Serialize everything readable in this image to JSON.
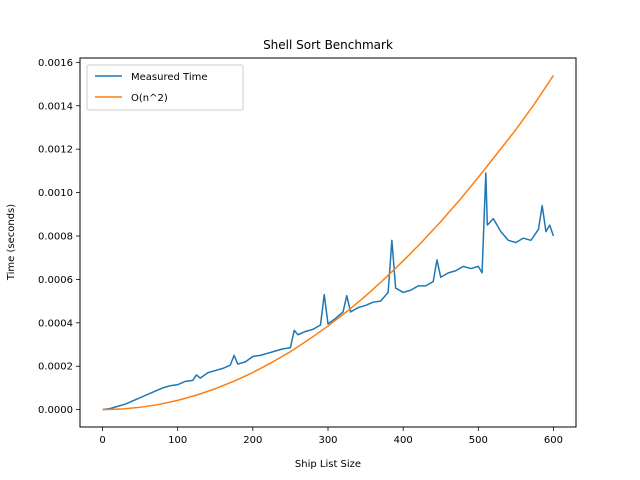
{
  "chart_data": {
    "type": "line",
    "title": "Shell Sort Benchmark",
    "xlabel": "Ship List Size",
    "ylabel": "Time (seconds)",
    "xlim": [
      -30,
      630
    ],
    "ylim": [
      -8e-05,
      0.00162
    ],
    "xticks": [
      0,
      100,
      200,
      300,
      400,
      500,
      600
    ],
    "yticks": [
      0.0,
      0.0002,
      0.0004,
      0.0006,
      0.0008,
      0.001,
      0.0012,
      0.0014,
      0.0016
    ],
    "ytick_labels": [
      "0.0000",
      "0.0002",
      "0.0004",
      "0.0006",
      "0.0008",
      "0.0010",
      "0.0012",
      "0.0014",
      "0.0016"
    ],
    "legend_position": "upper-left",
    "series": [
      {
        "name": "Measured Time",
        "color": "#1f77b4",
        "x": [
          0,
          10,
          20,
          30,
          40,
          50,
          60,
          70,
          80,
          90,
          100,
          110,
          120,
          125,
          130,
          140,
          150,
          160,
          170,
          175,
          180,
          190,
          200,
          210,
          220,
          230,
          240,
          250,
          255,
          260,
          270,
          280,
          290,
          295,
          300,
          310,
          320,
          325,
          330,
          340,
          350,
          360,
          370,
          380,
          385,
          390,
          400,
          410,
          420,
          430,
          440,
          445,
          450,
          460,
          470,
          480,
          490,
          500,
          505,
          510,
          512,
          520,
          530,
          540,
          550,
          560,
          570,
          580,
          585,
          590,
          595,
          600
        ],
        "y": [
          0.0,
          5e-06,
          1.5e-05,
          2.5e-05,
          4e-05,
          5.5e-05,
          7e-05,
          8.5e-05,
          0.0001,
          0.00011,
          0.000115,
          0.00013,
          0.000135,
          0.00016,
          0.000145,
          0.00017,
          0.00018,
          0.00019,
          0.000205,
          0.00025,
          0.00021,
          0.00022,
          0.000245,
          0.00025,
          0.00026,
          0.00027,
          0.00028,
          0.000285,
          0.000365,
          0.000345,
          0.00036,
          0.00037,
          0.00039,
          0.00053,
          0.000395,
          0.00042,
          0.00045,
          0.000525,
          0.00045,
          0.00047,
          0.00048,
          0.000495,
          0.0005,
          0.00054,
          0.00078,
          0.00056,
          0.00054,
          0.00055,
          0.00057,
          0.00057,
          0.00059,
          0.00069,
          0.00061,
          0.00063,
          0.00064,
          0.00066,
          0.00065,
          0.00066,
          0.00063,
          0.00109,
          0.00085,
          0.00088,
          0.00082,
          0.00078,
          0.00077,
          0.00079,
          0.00078,
          0.00083,
          0.00094,
          0.00082,
          0.00085,
          0.0008
        ]
      },
      {
        "name": "O(n^2)",
        "color": "#ff7f0e",
        "x": [
          0,
          25,
          50,
          75,
          100,
          125,
          150,
          175,
          200,
          225,
          250,
          275,
          300,
          325,
          350,
          375,
          400,
          425,
          450,
          475,
          500,
          525,
          550,
          575,
          600
        ],
        "y": [
          0.0,
          2.67e-06,
          1.07e-05,
          2.4e-05,
          4.28e-05,
          6.68e-05,
          9.63e-05,
          0.000131,
          0.000171,
          0.000217,
          0.000267,
          0.000324,
          0.000385,
          0.000452,
          0.000524,
          0.000602,
          0.000685,
          0.000773,
          0.000866,
          0.000965,
          0.00107,
          0.00118,
          0.00129,
          0.00141,
          0.00154
        ]
      }
    ]
  }
}
